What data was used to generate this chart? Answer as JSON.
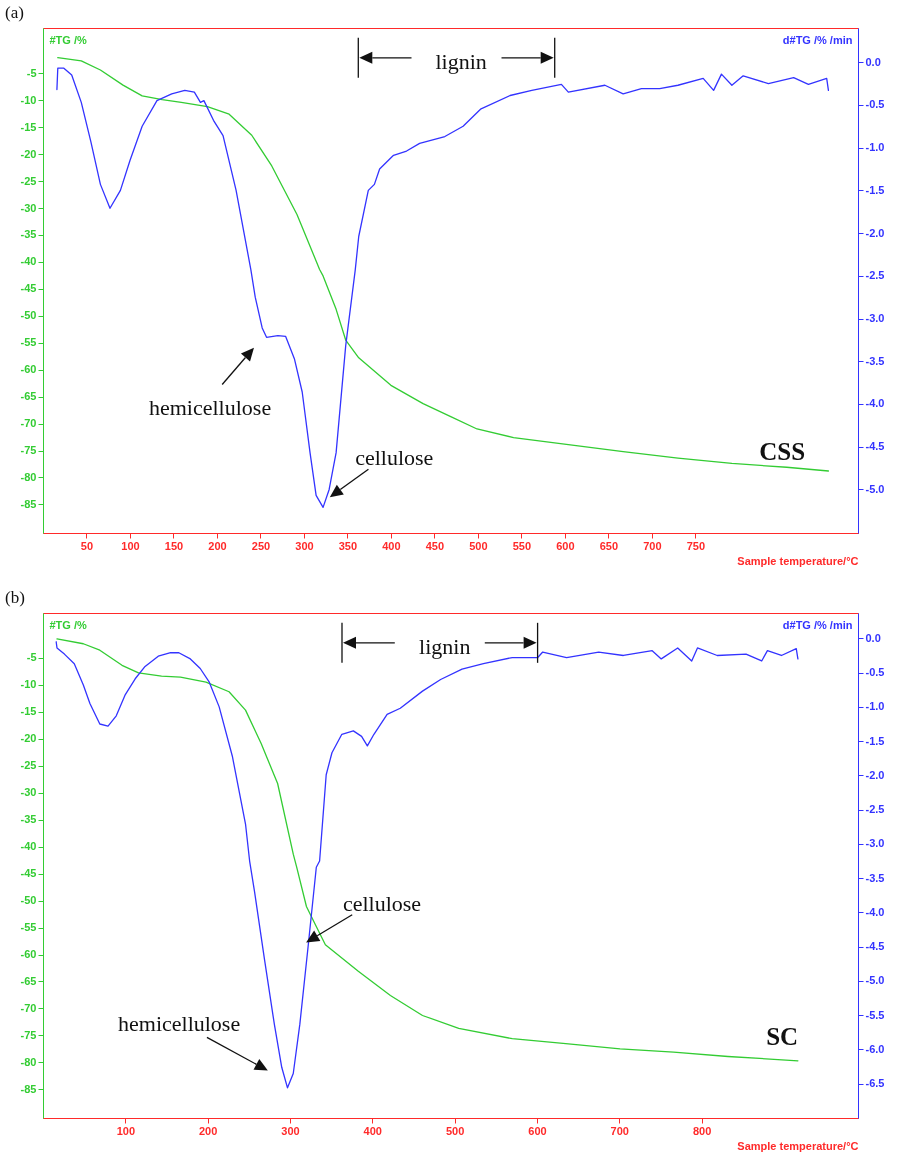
{
  "chart_data": [
    {
      "type": "line",
      "title": "(a)",
      "xlabel": "Sample temperature/°C",
      "ylabel": "#TG /%",
      "y2label": "d#TG /% /min",
      "xlim": [
        0,
        937
      ],
      "ylim": [
        -90.3,
        3.4
      ],
      "y2lim": [
        -5.51,
        0.4
      ],
      "xticks": [
        50,
        100,
        150,
        200,
        250,
        300,
        350,
        400,
        450,
        500,
        550,
        600,
        650,
        700,
        750
      ],
      "yticks": [
        -5,
        -10,
        -15,
        -20,
        -25,
        -30,
        -35,
        -40,
        -45,
        -50,
        -55,
        -60,
        -65,
        -70,
        -75,
        -80,
        -85
      ],
      "y2ticks": [
        {
          "value": 0,
          "label": "0.0"
        },
        -0.5,
        {
          "value": -1,
          "label": "-1.0"
        },
        -1.5,
        {
          "value": -2,
          "label": "-2.0"
        },
        -2.5,
        {
          "value": -3,
          "label": "-3.0"
        },
        -3.5,
        {
          "value": -4,
          "label": "-4.0"
        },
        -4.5,
        {
          "value": -5,
          "label": "-5.0"
        }
      ],
      "series": [
        {
          "color": "#33cc33",
          "x": [
            17,
            44,
            66,
            92,
            114,
            137,
            159,
            189,
            214,
            240,
            263,
            292,
            318,
            322,
            337,
            348,
            363,
            400,
            437,
            470,
            499,
            541,
            604,
            667,
            730,
            792,
            855,
            903
          ],
          "values": [
            -2.1,
            -2.7,
            -4.4,
            -7.2,
            -9.2,
            -9.9,
            -10.4,
            -11.2,
            -12.6,
            -16.5,
            -22.2,
            -31.2,
            -41.4,
            -42.6,
            -48.8,
            -54.5,
            -57.8,
            -62.9,
            -66.3,
            -68.8,
            -71.0,
            -72.6,
            -73.9,
            -75.2,
            -76.4,
            -77.4,
            -78.1,
            -78.8
          ]
        },
        {
          "color": "#3333ff",
          "axis": "y2",
          "x": [
            16,
            17,
            24,
            33,
            44,
            55,
            66,
            77,
            89,
            100,
            114,
            131,
            148,
            163,
            174,
            181,
            185,
            196,
            207,
            222,
            239,
            244,
            252,
            257,
            270,
            279,
            289,
            298,
            307,
            314,
            322,
            329,
            337,
            348,
            359,
            363,
            374,
            381,
            387,
            403,
            418,
            433,
            462,
            483,
            503,
            537,
            562,
            596,
            604,
            646,
            667,
            688,
            709,
            730,
            759,
            771,
            780,
            792,
            805,
            834,
            863,
            880,
            901,
            903
          ],
          "values": [
            -0.32,
            -0.07,
            -0.07,
            -0.15,
            -0.47,
            -0.93,
            -1.43,
            -1.71,
            -1.5,
            -1.15,
            -0.75,
            -0.45,
            -0.37,
            -0.33,
            -0.35,
            -0.47,
            -0.45,
            -0.68,
            -0.86,
            -1.5,
            -2.43,
            -2.75,
            -3.11,
            -3.22,
            -3.2,
            -3.21,
            -3.47,
            -3.86,
            -4.57,
            -5.07,
            -5.21,
            -5.0,
            -4.57,
            -3.32,
            -2.43,
            -2.04,
            -1.5,
            -1.43,
            -1.25,
            -1.09,
            -1.04,
            -0.95,
            -0.87,
            -0.75,
            -0.55,
            -0.39,
            -0.33,
            -0.26,
            -0.35,
            -0.27,
            -0.37,
            -0.31,
            -0.31,
            -0.27,
            -0.19,
            -0.33,
            -0.14,
            -0.27,
            -0.16,
            -0.25,
            -0.18,
            -0.26,
            -0.19,
            -0.33
          ]
        }
      ],
      "annotations": [
        "lignin",
        "hemicellulose",
        "cellulose",
        "CSS"
      ]
    },
    {
      "type": "line",
      "title": "(b)",
      "xlabel": "Sample temperature/°C",
      "ylabel": "#TG /%",
      "y2label": "d#TG /% /min",
      "xlim": [
        0,
        990
      ],
      "ylim": [
        -90.3,
        3.3
      ],
      "y2lim": [
        -7.0,
        0.37
      ],
      "xticks": [
        100,
        200,
        300,
        400,
        500,
        600,
        700,
        800
      ],
      "yticks": [
        -5,
        -10,
        -15,
        -20,
        -25,
        -30,
        -35,
        -40,
        -45,
        -50,
        -55,
        -60,
        -65,
        -70,
        -75,
        -80,
        -85
      ],
      "y2ticks": [
        {
          "value": 0,
          "label": "0.0"
        },
        -0.5,
        {
          "value": -1,
          "label": "-1.0"
        },
        -1.5,
        {
          "value": -2,
          "label": "-2.0"
        },
        -2.5,
        {
          "value": -3,
          "label": "-3.0"
        },
        -3.5,
        {
          "value": -4,
          "label": "-4.0"
        },
        -4.5,
        {
          "value": -5,
          "label": "-5.0"
        },
        -5.5,
        {
          "value": -6,
          "label": "-6.0"
        },
        -6.5
      ],
      "series": [
        {
          "color": "#33cc33",
          "x": [
            17,
            49,
            69,
            96,
            116,
            144,
            167,
            198,
            226,
            246,
            265,
            285,
            304,
            308,
            320,
            330,
            343,
            383,
            422,
            461,
            505,
            570,
            635,
            701,
            766,
            832,
            917
          ],
          "values": [
            -1.5,
            -2.4,
            -3.6,
            -6.4,
            -7.8,
            -8.4,
            -8.6,
            -9.5,
            -11.3,
            -14.7,
            -20.9,
            -28.3,
            -41.4,
            -43.7,
            -51.1,
            -54.2,
            -58.2,
            -63.1,
            -67.6,
            -71.3,
            -73.7,
            -75.6,
            -76.5,
            -77.5,
            -78.1,
            -78.9,
            -79.7
          ]
        },
        {
          "color": "#3333ff",
          "axis": "y2",
          "x": [
            16,
            17,
            26,
            38,
            49,
            57,
            69,
            79,
            89,
            100,
            112,
            124,
            140,
            155,
            165,
            179,
            191,
            202,
            214,
            230,
            246,
            251,
            257,
            269,
            281,
            290,
            297,
            304,
            312,
            322,
            332,
            336,
            344,
            351,
            363,
            377,
            387,
            394,
            402,
            418,
            434,
            461,
            483,
            509,
            535,
            570,
            601,
            607,
            636,
            675,
            705,
            740,
            751,
            771,
            788,
            795,
            819,
            854,
            873,
            880,
            897,
            915,
            917
          ],
          "values": [
            -0.05,
            -0.14,
            -0.23,
            -0.37,
            -0.68,
            -0.95,
            -1.25,
            -1.28,
            -1.13,
            -0.82,
            -0.59,
            -0.41,
            -0.26,
            -0.21,
            -0.21,
            -0.3,
            -0.44,
            -0.64,
            -1.0,
            -1.72,
            -2.71,
            -3.25,
            -3.7,
            -4.68,
            -5.63,
            -6.26,
            -6.56,
            -6.35,
            -5.63,
            -4.5,
            -3.34,
            -3.25,
            -1.99,
            -1.67,
            -1.4,
            -1.35,
            -1.43,
            -1.57,
            -1.4,
            -1.11,
            -1.02,
            -0.77,
            -0.6,
            -0.45,
            -0.37,
            -0.28,
            -0.28,
            -0.2,
            -0.28,
            -0.2,
            -0.25,
            -0.18,
            -0.3,
            -0.14,
            -0.33,
            -0.14,
            -0.25,
            -0.23,
            -0.33,
            -0.18,
            -0.25,
            -0.15,
            -0.3
          ]
        }
      ],
      "annotations": [
        "lignin",
        "hemicellulose",
        {
          "text": "cellulose",
          "x": 322,
          "y": -58.5
        },
        "SC"
      ]
    }
  ]
}
